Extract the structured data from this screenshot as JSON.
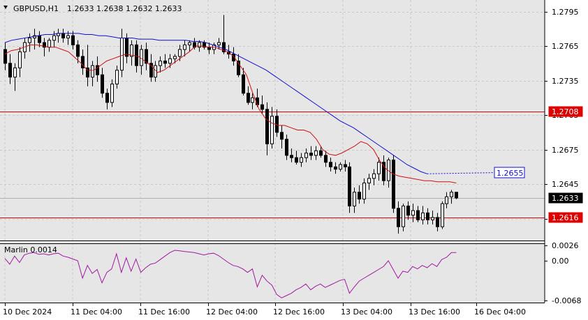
{
  "header": {
    "symbol": "GBPUSD,H1",
    "ohlc": "1.2633 1.2638 1.2632 1.2633"
  },
  "colors": {
    "background": "#ffffff",
    "plot_bg": "#e6e6e6",
    "grid": "#c8c8c8",
    "candle": "#000000",
    "ma_fast": "#cc1111",
    "ma_slow": "#1111cc",
    "level": "#dd0000",
    "oscillator": "#a01aa0"
  },
  "chart_data": [
    {
      "type": "candlestick",
      "ylim": [
        1.2596,
        1.2805
      ],
      "y_ticks": [
        "1.2795",
        "1.2765",
        "1.2735",
        "1.2705",
        "1.2675",
        "1.2645",
        "1.2615"
      ],
      "time_ticks": [
        "10 Dec 2024",
        "11 Dec 04:00",
        "11 Dec 16:00",
        "12 Dec 04:00",
        "12 Dec 16:00",
        "13 Dec 04:00",
        "13 Dec 16:00",
        "16 Dec 04:00"
      ],
      "candles": [
        [
          1.2762,
          1.2768,
          1.2744,
          1.275
        ],
        [
          1.275,
          1.2758,
          1.2732,
          1.2738
        ],
        [
          1.2738,
          1.275,
          1.2726,
          1.2746
        ],
        [
          1.2746,
          1.2764,
          1.2738,
          1.276
        ],
        [
          1.276,
          1.2772,
          1.2754,
          1.2768
        ],
        [
          1.2768,
          1.2776,
          1.276,
          1.2772
        ],
        [
          1.2772,
          1.278,
          1.2762,
          1.2774
        ],
        [
          1.2774,
          1.2778,
          1.2764,
          1.2768
        ],
        [
          1.2768,
          1.2772,
          1.2756,
          1.2764
        ],
        [
          1.2764,
          1.2772,
          1.276,
          1.277
        ],
        [
          1.277,
          1.2778,
          1.2764,
          1.2774
        ],
        [
          1.2774,
          1.278,
          1.2768,
          1.2776
        ],
        [
          1.2776,
          1.278,
          1.2768,
          1.2772
        ],
        [
          1.2772,
          1.2778,
          1.2766,
          1.2774
        ],
        [
          1.2774,
          1.2778,
          1.2762,
          1.2766
        ],
        [
          1.2766,
          1.277,
          1.275,
          1.2756
        ],
        [
          1.2756,
          1.2762,
          1.274,
          1.2746
        ],
        [
          1.2746,
          1.2766,
          1.273,
          1.2738
        ],
        [
          1.2738,
          1.2752,
          1.273,
          1.2748
        ],
        [
          1.2748,
          1.2756,
          1.2734,
          1.274
        ],
        [
          1.274,
          1.2746,
          1.272,
          1.2724
        ],
        [
          1.2724,
          1.2728,
          1.271,
          1.2716
        ],
        [
          1.2716,
          1.2736,
          1.2712,
          1.2732
        ],
        [
          1.2732,
          1.2748,
          1.2728,
          1.2744
        ],
        [
          1.2744,
          1.278,
          1.2738,
          1.2772
        ],
        [
          1.2772,
          1.2776,
          1.275,
          1.2756
        ],
        [
          1.2756,
          1.277,
          1.2748,
          1.2766
        ],
        [
          1.2766,
          1.277,
          1.2742,
          1.2748
        ],
        [
          1.2748,
          1.2766,
          1.274,
          1.2762
        ],
        [
          1.2762,
          1.2768,
          1.2744,
          1.275
        ],
        [
          1.275,
          1.2758,
          1.2734,
          1.2738
        ],
        [
          1.2738,
          1.2752,
          1.2734,
          1.2748
        ],
        [
          1.2748,
          1.2756,
          1.2742,
          1.2752
        ],
        [
          1.2752,
          1.2758,
          1.2746,
          1.275
        ],
        [
          1.275,
          1.2758,
          1.2746,
          1.2754
        ],
        [
          1.2754,
          1.2758,
          1.275,
          1.2756
        ],
        [
          1.2756,
          1.2766,
          1.2752,
          1.2762
        ],
        [
          1.2762,
          1.277,
          1.2756,
          1.2766
        ],
        [
          1.2766,
          1.277,
          1.276,
          1.2768
        ],
        [
          1.2768,
          1.2772,
          1.2762,
          1.2764
        ],
        [
          1.2764,
          1.277,
          1.276,
          1.2768
        ],
        [
          1.2768,
          1.277,
          1.2762,
          1.2764
        ],
        [
          1.2764,
          1.2768,
          1.2758,
          1.2762
        ],
        [
          1.2762,
          1.2768,
          1.2758,
          1.2766
        ],
        [
          1.2766,
          1.2772,
          1.2762,
          1.2768
        ],
        [
          1.2768,
          1.2792,
          1.2758,
          1.276
        ],
        [
          1.276,
          1.2766,
          1.2754,
          1.2758
        ],
        [
          1.2758,
          1.2764,
          1.2748,
          1.2752
        ],
        [
          1.2752,
          1.2758,
          1.2738,
          1.274
        ],
        [
          1.274,
          1.2746,
          1.2722,
          1.2724
        ],
        [
          1.2724,
          1.273,
          1.2714,
          1.2716
        ],
        [
          1.2716,
          1.2724,
          1.271,
          1.272
        ],
        [
          1.272,
          1.2728,
          1.2712,
          1.2714
        ],
        [
          1.2714,
          1.2722,
          1.2706,
          1.271
        ],
        [
          1.271,
          1.2716,
          1.267,
          1.268
        ],
        [
          1.268,
          1.2712,
          1.2676,
          1.2704
        ],
        [
          1.2704,
          1.271,
          1.2686,
          1.269
        ],
        [
          1.269,
          1.2696,
          1.2676,
          1.2684
        ],
        [
          1.2684,
          1.2688,
          1.2666,
          1.267
        ],
        [
          1.267,
          1.2676,
          1.2664,
          1.2668
        ],
        [
          1.2668,
          1.2674,
          1.2662,
          1.2664
        ],
        [
          1.2664,
          1.2672,
          1.266,
          1.2668
        ],
        [
          1.2668,
          1.2676,
          1.2664,
          1.2672
        ],
        [
          1.2672,
          1.2678,
          1.2666,
          1.267
        ],
        [
          1.267,
          1.2678,
          1.2666,
          1.2674
        ],
        [
          1.2674,
          1.2678,
          1.2668,
          1.267
        ],
        [
          1.267,
          1.2674,
          1.266,
          1.2664
        ],
        [
          1.2664,
          1.2668,
          1.2656,
          1.266
        ],
        [
          1.266,
          1.2664,
          1.2654,
          1.2658
        ],
        [
          1.2658,
          1.2664,
          1.2656,
          1.2662
        ],
        [
          1.2662,
          1.2666,
          1.2656,
          1.266
        ],
        [
          1.266,
          1.2664,
          1.262,
          1.2626
        ],
        [
          1.2626,
          1.2642,
          1.262,
          1.2638
        ],
        [
          1.2638,
          1.2644,
          1.2628,
          1.2632
        ],
        [
          1.2632,
          1.265,
          1.2628,
          1.2646
        ],
        [
          1.2646,
          1.2654,
          1.264,
          1.265
        ],
        [
          1.265,
          1.2658,
          1.2644,
          1.2654
        ],
        [
          1.2654,
          1.2668,
          1.2648,
          1.2664
        ],
        [
          1.2664,
          1.267,
          1.2644,
          1.2648
        ],
        [
          1.2648,
          1.2668,
          1.2642,
          1.2666
        ],
        [
          1.2666,
          1.267,
          1.262,
          1.2624
        ],
        [
          1.2624,
          1.263,
          1.2602,
          1.2608
        ],
        [
          1.2608,
          1.2628,
          1.2604,
          1.2626
        ],
        [
          1.2626,
          1.263,
          1.2614,
          1.2618
        ],
        [
          1.2618,
          1.2628,
          1.2612,
          1.2622
        ],
        [
          1.2622,
          1.2626,
          1.2612,
          1.2614
        ],
        [
          1.2614,
          1.2626,
          1.261,
          1.262
        ],
        [
          1.262,
          1.2624,
          1.261,
          1.2614
        ],
        [
          1.2614,
          1.2622,
          1.261,
          1.2616
        ],
        [
          1.2616,
          1.262,
          1.2604,
          1.2608
        ],
        [
          1.2608,
          1.263,
          1.2606,
          1.2628
        ],
        [
          1.2628,
          1.2638,
          1.2624,
          1.2634
        ],
        [
          1.2634,
          1.264,
          1.2628,
          1.2638
        ],
        [
          1.2638,
          1.2638,
          1.2632,
          1.2633
        ]
      ],
      "ma_fast": [
        [
          1.2758,
          1.2761
        ],
        [
          1.2762,
          1.2764
        ],
        [
          1.2766,
          1.2766
        ],
        [
          1.2765,
          1.2764
        ],
        [
          1.2764,
          1.2762
        ],
        [
          1.276,
          1.2755
        ],
        [
          1.275,
          1.2744
        ],
        [
          1.2744,
          1.2748
        ],
        [
          1.2752,
          1.2754
        ],
        [
          1.2756,
          1.2758
        ],
        [
          1.2757,
          1.2756
        ],
        [
          1.2752,
          1.2748
        ],
        [
          1.2742,
          1.2744
        ],
        [
          1.2748,
          1.2752
        ],
        [
          1.2756,
          1.276
        ],
        [
          1.2765,
          1.2765
        ],
        [
          1.2764,
          1.2764
        ],
        [
          1.2762,
          1.276
        ],
        [
          1.2756,
          1.2748
        ],
        [
          1.274,
          1.2724
        ],
        [
          1.271,
          1.2702
        ],
        [
          1.2698,
          1.2696
        ],
        [
          1.2696,
          1.2694
        ],
        [
          1.2692,
          1.2692
        ],
        [
          1.269,
          1.2684
        ],
        [
          1.2675,
          1.2671
        ],
        [
          1.267,
          1.2672
        ],
        [
          1.2675,
          1.2678
        ],
        [
          1.2682,
          1.268
        ],
        [
          1.2675,
          1.2665
        ],
        [
          1.2658,
          1.2654
        ],
        [
          1.2652,
          1.2651
        ],
        [
          1.265,
          1.2649
        ],
        [
          1.2648,
          1.2648
        ],
        [
          1.2647,
          1.2647
        ],
        [
          1.2647,
          1.2646
        ]
      ],
      "ma_slow": [
        [
          1.2768,
          1.277
        ],
        [
          1.2771,
          1.2772
        ],
        [
          1.2773,
          1.2774
        ],
        [
          1.2775,
          1.2775
        ],
        [
          1.2776,
          1.2776
        ],
        [
          1.2776,
          1.2776
        ],
        [
          1.2775,
          1.2775
        ],
        [
          1.2774,
          1.2774
        ],
        [
          1.2773,
          1.2772
        ],
        [
          1.2772,
          1.2772
        ],
        [
          1.2771,
          1.2771
        ],
        [
          1.2771,
          1.277
        ],
        [
          1.277,
          1.277
        ],
        [
          1.277,
          1.277
        ],
        [
          1.2769,
          1.2769
        ],
        [
          1.2768,
          1.2766
        ],
        [
          1.2764,
          1.2762
        ],
        [
          1.2759,
          1.2756
        ],
        [
          1.2753,
          1.275
        ],
        [
          1.2747,
          1.2744
        ],
        [
          1.274,
          1.2736
        ],
        [
          1.2732,
          1.2728
        ],
        [
          1.2724,
          1.272
        ],
        [
          1.2716,
          1.2712
        ],
        [
          1.2708,
          1.2704
        ],
        [
          1.27,
          1.2697
        ],
        [
          1.2694,
          1.269
        ],
        [
          1.2686,
          1.2682
        ],
        [
          1.2678,
          1.2674
        ],
        [
          1.267,
          1.2666
        ],
        [
          1.2662,
          1.2659
        ],
        [
          1.2656,
          1.2654
        ]
      ],
      "levels": [
        {
          "value": 1.2708,
          "label": "1.2708"
        },
        {
          "value": 1.2616,
          "label": "1.2616"
        }
      ],
      "ma_label": "1.2655",
      "current_price": "1.2633"
    },
    {
      "type": "line",
      "name": "Marlin 0.0014",
      "ylim": [
        -0.0072,
        0.003
      ],
      "y_ticks": [
        "0.0026",
        "0.00",
        "-0.0068"
      ],
      "series": [
        {
          "name": "Marlin",
          "values": [
            0.0004,
            -0.0006,
            0.0008,
            -0.0003,
            0.001,
            0.0013,
            0.0014,
            0.0011,
            0.0012,
            0.001,
            0.0012,
            0.0013,
            0.0008,
            0.0006,
            0.0003,
            0.0,
            -0.003,
            -0.0008,
            -0.0022,
            -0.0015,
            -0.0038,
            -0.002,
            -0.0014,
            0.0012,
            -0.002,
            0.0005,
            -0.0018,
            0.0003,
            -0.002,
            -0.0012,
            -0.0006,
            -0.0004,
            0.0002,
            0.0008,
            0.0014,
            0.0018,
            0.0017,
            0.0016,
            0.0015,
            0.0014,
            0.0012,
            0.001,
            0.0012,
            0.0013,
            0.0009,
            0.0003,
            -0.0003,
            -0.0008,
            -0.001,
            -0.0014,
            -0.002,
            -0.0014,
            -0.0045,
            -0.0025,
            -0.0035,
            -0.0042,
            -0.0058,
            -0.0064,
            -0.006,
            -0.0056,
            -0.005,
            -0.0046,
            -0.004,
            -0.005,
            -0.0044,
            -0.004,
            -0.0046,
            -0.0042,
            -0.0038,
            -0.0034,
            -0.0032,
            -0.0056,
            -0.0045,
            -0.0035,
            -0.003,
            -0.0025,
            -0.002,
            -0.0015,
            -0.001,
            0.0,
            -0.0015,
            -0.003,
            -0.0018,
            -0.002,
            -0.001,
            -0.0014,
            -0.0008,
            -0.0012,
            -0.0005,
            -0.001,
            0.0002,
            0.0006,
            0.0014,
            0.0014
          ]
        }
      ]
    }
  ]
}
